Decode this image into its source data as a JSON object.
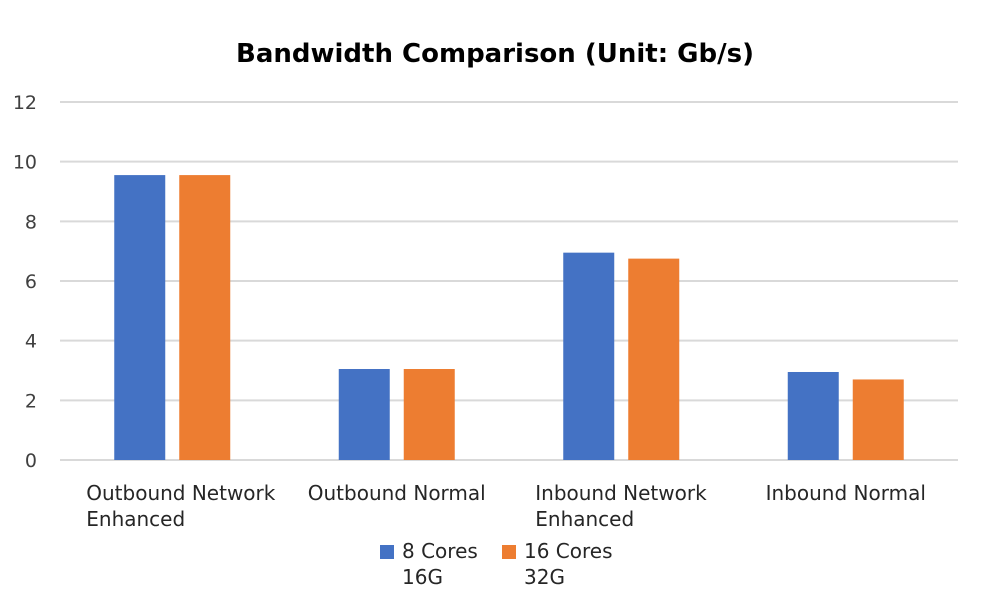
{
  "chart_data": {
    "type": "bar",
    "title": "Bandwidth Comparison (Unit: Gb/s)",
    "categories": [
      [
        "Outbound Network",
        "Enhanced"
      ],
      [
        "Outbound Normal"
      ],
      [
        "Inbound Network",
        "Enhanced"
      ],
      [
        "Inbound Normal"
      ]
    ],
    "series": [
      {
        "name": [
          "8 Cores",
          "16G"
        ],
        "color": "#4472C4",
        "values": [
          9.55,
          3.05,
          6.95,
          2.95
        ]
      },
      {
        "name": [
          "16 Cores",
          "32G"
        ],
        "color": "#ED7D31",
        "values": [
          9.55,
          3.05,
          6.75,
          2.7
        ]
      }
    ],
    "yticks": [
      "0",
      "2",
      "4",
      "6",
      "8",
      "10",
      "12"
    ],
    "ylim": [
      0,
      12
    ],
    "grid": true,
    "legend": "bottom",
    "gridColor": "#D9D9D9"
  }
}
